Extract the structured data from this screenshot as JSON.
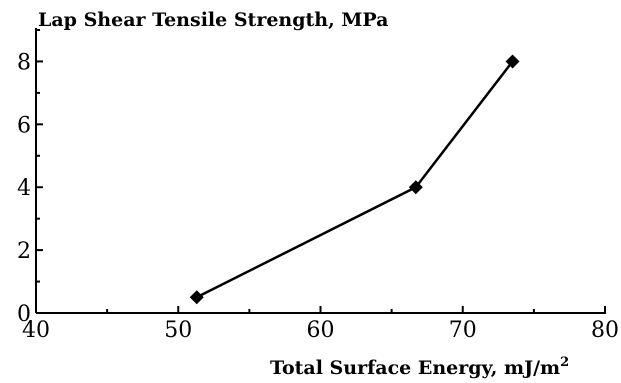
{
  "chart_data": {
    "type": "line",
    "title": "",
    "ylabel": "Lap Shear Tensile Strength, MPa",
    "xlabel_main": "Total Surface Energy, mJ/m",
    "xlabel_sup": "2",
    "xlim": [
      40,
      80
    ],
    "ylim": [
      0,
      9
    ],
    "xticks": [
      40,
      50,
      60,
      70,
      80
    ],
    "yticks": [
      0,
      2,
      4,
      6,
      8
    ],
    "grid": false,
    "legend": "none",
    "series": [
      {
        "x": [
          51.3,
          66.7,
          73.5
        ],
        "y": [
          0.5,
          4,
          8
        ]
      }
    ],
    "colors": {
      "line": "#000000",
      "marker": "#000000",
      "axis": "#000000"
    }
  }
}
